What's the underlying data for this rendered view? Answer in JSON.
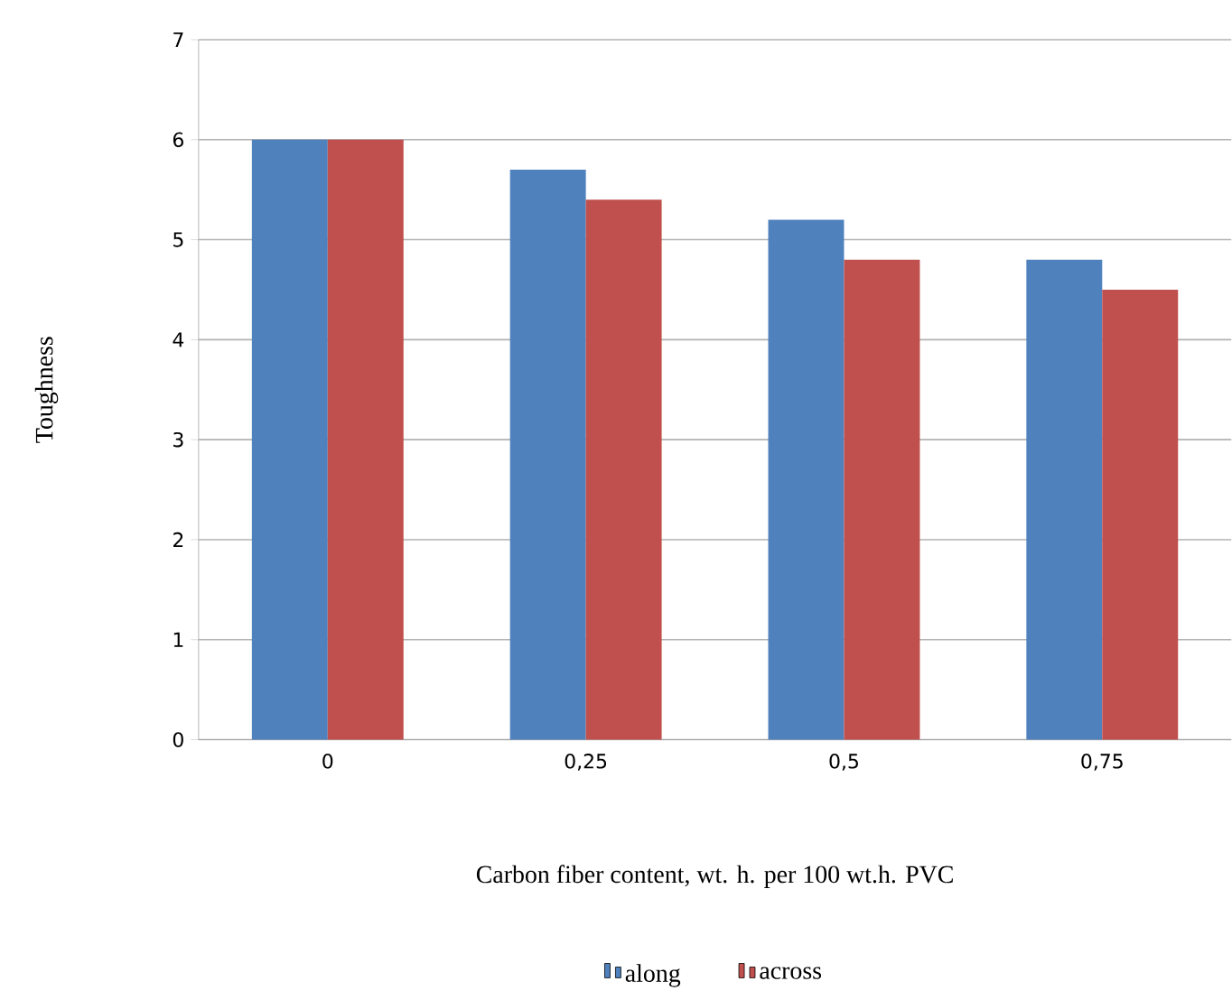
{
  "chart_data": {
    "type": "bar",
    "xlabel": "Carbon fiber content, wt. h. per 100 wt.h. PVC",
    "ylabel": "Toughness",
    "categories": [
      "0",
      "0,25",
      "0,5",
      "0,75"
    ],
    "series": [
      {
        "name": "along",
        "color": "#4f81bd",
        "values": [
          6,
          5.7,
          5.2,
          4.8
        ]
      },
      {
        "name": "across",
        "color": "#c0504d",
        "values": [
          6,
          5.4,
          4.8,
          4.5
        ]
      }
    ],
    "ylim": [
      0,
      7
    ],
    "yticks": [
      0,
      1,
      2,
      3,
      4,
      5,
      6,
      7
    ],
    "grid": "y",
    "legend": "bottom"
  }
}
